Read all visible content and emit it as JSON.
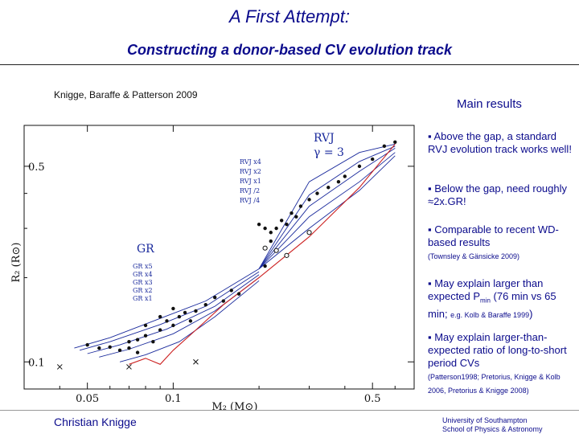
{
  "title": "A First Attempt:",
  "subtitle": "Constructing a donor-based CV evolution track",
  "citation": "Knigge, Baraffe & Patterson 2009",
  "results": {
    "heading": "Main results",
    "b1": "▪ Above the gap, a standard RVJ evolution track works well!",
    "b2": "▪  Below the gap, need roughly ≈2x.GR!",
    "b3": "▪  Comparable to recent WD-based results",
    "b3_ref": "(Townsley & Gänsicke 2009)",
    "b4_a": "▪ May explain larger than expected P",
    "b4_sub": "min",
    "b4_b": " (76 min vs 65 min; ",
    "b4_ref": "e.g. Kolb & Baraffe 1999",
    "b4_c": ")",
    "b5": "▪ May explain larger-than-expected ratio of long-to-short period CVs",
    "b5_ref": "(Patterson1998; Pretorius, Knigge & Kolb 2006, Pretorius & Knigge 2008)"
  },
  "footer": {
    "author": "Christian Knigge",
    "inst1": "University of Southampton",
    "inst2": "School of Physics & Astronomy"
  },
  "chart_data": {
    "type": "line",
    "xlabel": "M₂ (M⊙)",
    "ylabel": "R₂ (R⊙)",
    "x_scale": "log",
    "y_scale": "log",
    "xlim": [
      0.03,
      0.7
    ],
    "ylim": [
      0.08,
      0.7
    ],
    "x_ticks": [
      0.05,
      0.1,
      0.5
    ],
    "y_ticks": [
      0.1,
      0.5
    ],
    "annotations": {
      "rvj": "RVJ",
      "gamma": "γ = 3",
      "gr": "GR",
      "rvj_labels": [
        "RVJ x4",
        "RVJ x2",
        "RVJ x1",
        "RVJ /2",
        "RVJ /4"
      ],
      "gr_labels": [
        "GR x5",
        "GR x4",
        "GR x3",
        "GR x2",
        "GR x1"
      ]
    },
    "series": [
      {
        "kind": "rvj",
        "points": [
          [
            0.2,
            0.215
          ],
          [
            0.3,
            0.44
          ],
          [
            0.45,
            0.56
          ],
          [
            0.6,
            0.6
          ]
        ]
      },
      {
        "kind": "rvj",
        "points": [
          [
            0.2,
            0.215
          ],
          [
            0.3,
            0.395
          ],
          [
            0.45,
            0.52
          ],
          [
            0.6,
            0.59
          ]
        ]
      },
      {
        "kind": "rvj",
        "points": [
          [
            0.2,
            0.215
          ],
          [
            0.3,
            0.36
          ],
          [
            0.45,
            0.48
          ],
          [
            0.6,
            0.58
          ]
        ]
      },
      {
        "kind": "rvj",
        "points": [
          [
            0.2,
            0.215
          ],
          [
            0.3,
            0.33
          ],
          [
            0.45,
            0.44
          ],
          [
            0.6,
            0.56
          ]
        ]
      },
      {
        "kind": "rvj",
        "points": [
          [
            0.2,
            0.215
          ],
          [
            0.3,
            0.3
          ],
          [
            0.45,
            0.41
          ],
          [
            0.6,
            0.545
          ]
        ]
      },
      {
        "kind": "gr",
        "points": [
          [
            0.045,
            0.112
          ],
          [
            0.06,
            0.122
          ],
          [
            0.09,
            0.143
          ],
          [
            0.13,
            0.165
          ],
          [
            0.2,
            0.215
          ]
        ]
      },
      {
        "kind": "gr",
        "points": [
          [
            0.047,
            0.11
          ],
          [
            0.06,
            0.118
          ],
          [
            0.09,
            0.136
          ],
          [
            0.13,
            0.158
          ],
          [
            0.2,
            0.21
          ]
        ]
      },
      {
        "kind": "gr",
        "points": [
          [
            0.05,
            0.107
          ],
          [
            0.065,
            0.115
          ],
          [
            0.095,
            0.131
          ],
          [
            0.14,
            0.158
          ],
          [
            0.2,
            0.205
          ]
        ]
      },
      {
        "kind": "gr",
        "points": [
          [
            0.055,
            0.104
          ],
          [
            0.07,
            0.111
          ],
          [
            0.1,
            0.126
          ],
          [
            0.14,
            0.152
          ],
          [
            0.2,
            0.2
          ]
        ]
      },
      {
        "kind": "gr",
        "points": [
          [
            0.065,
            0.1
          ],
          [
            0.08,
            0.106
          ],
          [
            0.105,
            0.118
          ],
          [
            0.14,
            0.145
          ],
          [
            0.2,
            0.195
          ]
        ]
      },
      {
        "kind": "empirical",
        "points": [
          [
            0.07,
            0.098
          ],
          [
            0.08,
            0.103
          ],
          [
            0.09,
            0.098
          ],
          [
            0.1,
            0.11
          ],
          [
            0.12,
            0.13
          ],
          [
            0.15,
            0.16
          ],
          [
            0.2,
            0.2
          ],
          [
            0.3,
            0.28
          ],
          [
            0.45,
            0.42
          ],
          [
            0.6,
            0.6
          ]
        ]
      }
    ],
    "points_filled": [
      [
        0.05,
        0.115
      ],
      [
        0.055,
        0.112
      ],
      [
        0.06,
        0.113
      ],
      [
        0.065,
        0.11
      ],
      [
        0.07,
        0.112
      ],
      [
        0.075,
        0.12
      ],
      [
        0.08,
        0.124
      ],
      [
        0.085,
        0.118
      ],
      [
        0.09,
        0.13
      ],
      [
        0.095,
        0.14
      ],
      [
        0.1,
        0.135
      ],
      [
        0.105,
        0.145
      ],
      [
        0.11,
        0.15
      ],
      [
        0.115,
        0.14
      ],
      [
        0.12,
        0.152
      ],
      [
        0.13,
        0.16
      ],
      [
        0.14,
        0.17
      ],
      [
        0.15,
        0.165
      ],
      [
        0.16,
        0.18
      ],
      [
        0.17,
        0.175
      ],
      [
        0.08,
        0.135
      ],
      [
        0.09,
        0.145
      ],
      [
        0.1,
        0.155
      ],
      [
        0.07,
        0.118
      ],
      [
        0.075,
        0.108
      ],
      [
        0.2,
        0.31
      ],
      [
        0.21,
        0.3
      ],
      [
        0.22,
        0.29
      ],
      [
        0.23,
        0.3
      ],
      [
        0.24,
        0.32
      ],
      [
        0.25,
        0.31
      ],
      [
        0.26,
        0.34
      ],
      [
        0.28,
        0.36
      ],
      [
        0.3,
        0.38
      ],
      [
        0.32,
        0.4
      ],
      [
        0.35,
        0.42
      ],
      [
        0.38,
        0.44
      ],
      [
        0.4,
        0.46
      ],
      [
        0.45,
        0.5
      ],
      [
        0.5,
        0.53
      ],
      [
        0.55,
        0.59
      ],
      [
        0.6,
        0.61
      ],
      [
        0.21,
        0.22
      ],
      [
        0.22,
        0.27
      ],
      [
        0.27,
        0.33
      ]
    ],
    "points_open": [
      [
        0.23,
        0.25
      ],
      [
        0.25,
        0.24
      ],
      [
        0.3,
        0.29
      ],
      [
        0.21,
        0.255
      ]
    ],
    "points_cross": [
      [
        0.04,
        0.096
      ],
      [
        0.07,
        0.096
      ],
      [
        0.12,
        0.1
      ]
    ]
  }
}
